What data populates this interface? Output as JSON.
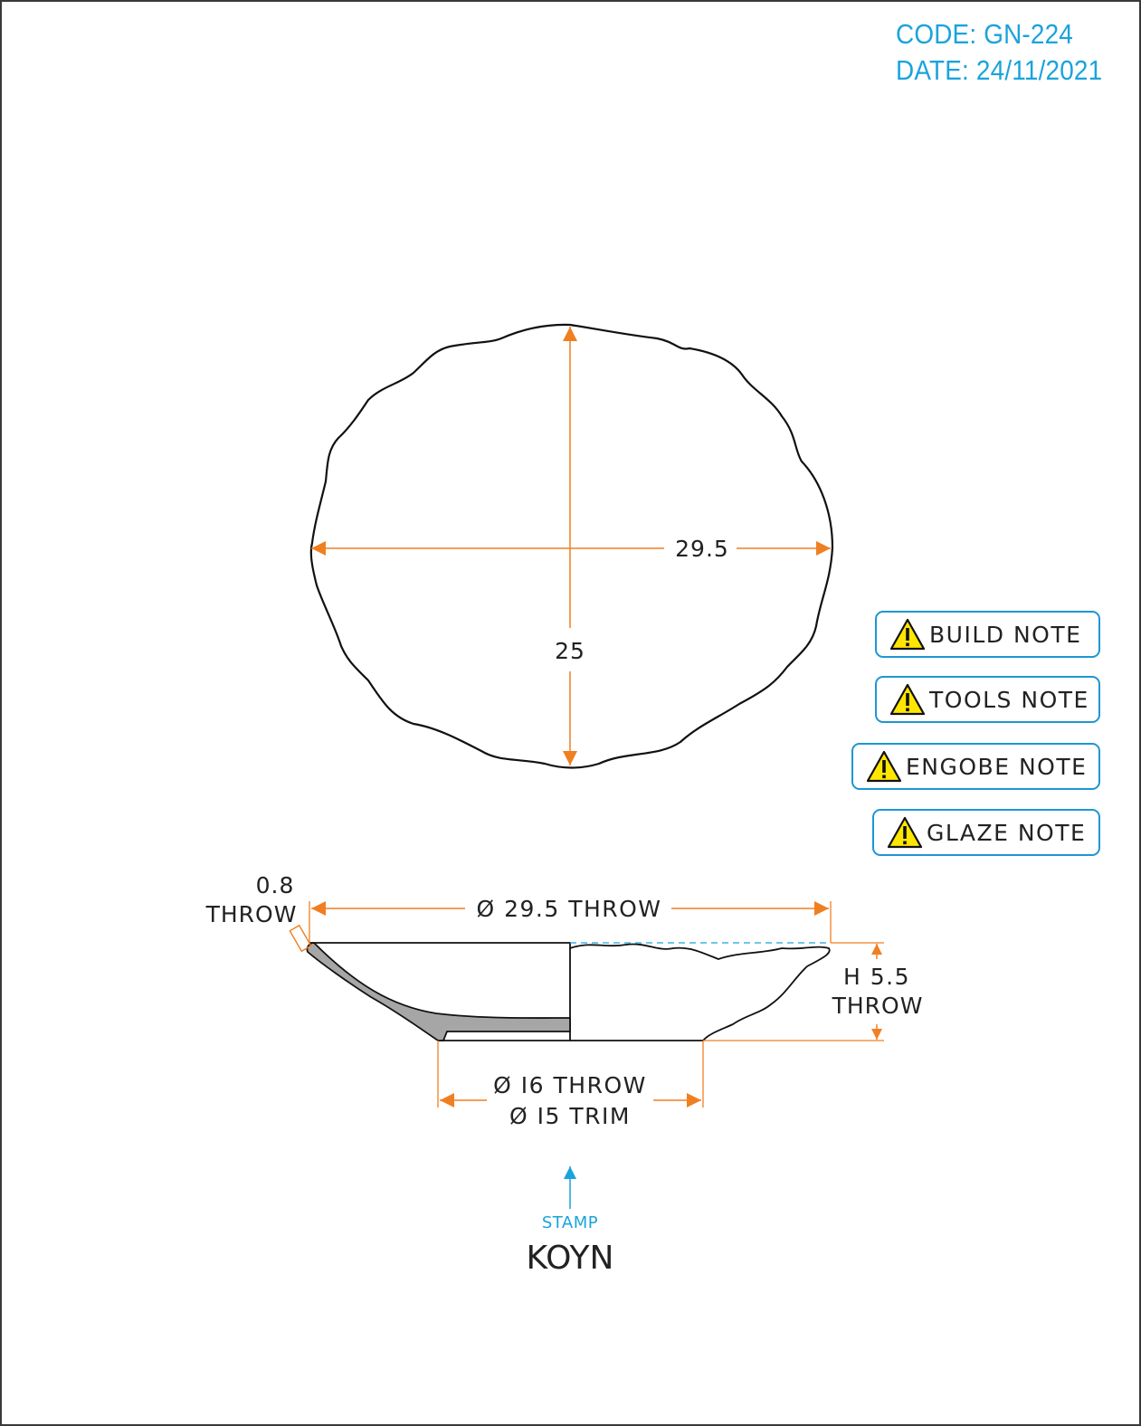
{
  "header": {
    "code": "CODE: GN-224",
    "date": "DATE: 24/11/2021"
  },
  "top_view": {
    "width_label": "29.5",
    "depth_label": "25"
  },
  "notes": [
    {
      "label": "BUILD NOTE",
      "icon": "warning-icon"
    },
    {
      "label": "TOOLS NOTE",
      "icon": "warning-icon"
    },
    {
      "label": "ENGOBE NOTE",
      "icon": "warning-icon"
    },
    {
      "label": "GLAZE NOTE",
      "icon": "warning-icon"
    }
  ],
  "side_view": {
    "wall_value": "0.8",
    "wall_unit": "THROW",
    "rim_diameter": "Ø 29.5 THROW",
    "height_value": "H 5.5",
    "height_unit": "THROW",
    "foot_throw": "Ø I6 THROW",
    "foot_trim": "Ø I5 TRIM"
  },
  "stamp": {
    "label": "STAMP",
    "text": "KOYN"
  },
  "colors": {
    "dimension": "#f07f22",
    "accent": "#1aa3dc",
    "outline": "#111111",
    "section_fill": "#a6a6a6"
  }
}
